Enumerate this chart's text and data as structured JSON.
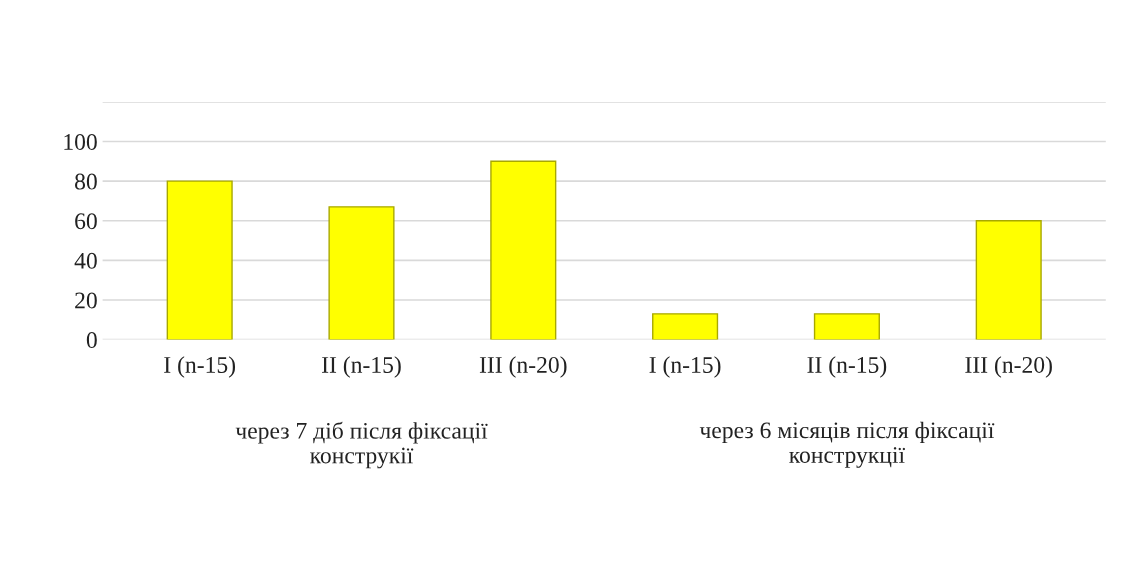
{
  "chart_data": {
    "type": "bar",
    "categories": [
      "I (n-15)",
      "II (n-15)",
      "III (n-20)",
      "I (n-15)",
      "II (n-15)",
      "III (n-20)"
    ],
    "values": [
      80,
      67,
      90,
      13,
      13,
      60
    ],
    "color": "#ffff00",
    "ylim": [
      0,
      120
    ],
    "yticks": [
      0,
      20,
      40,
      60,
      80,
      100,
      {
        "value": 120,
        "label": null
      }
    ],
    "grid": "y",
    "annotations": [
      "через 7 діб після фіксації\nконструкії",
      "через 6 місяців після фіксації\nконструкції"
    ]
  }
}
